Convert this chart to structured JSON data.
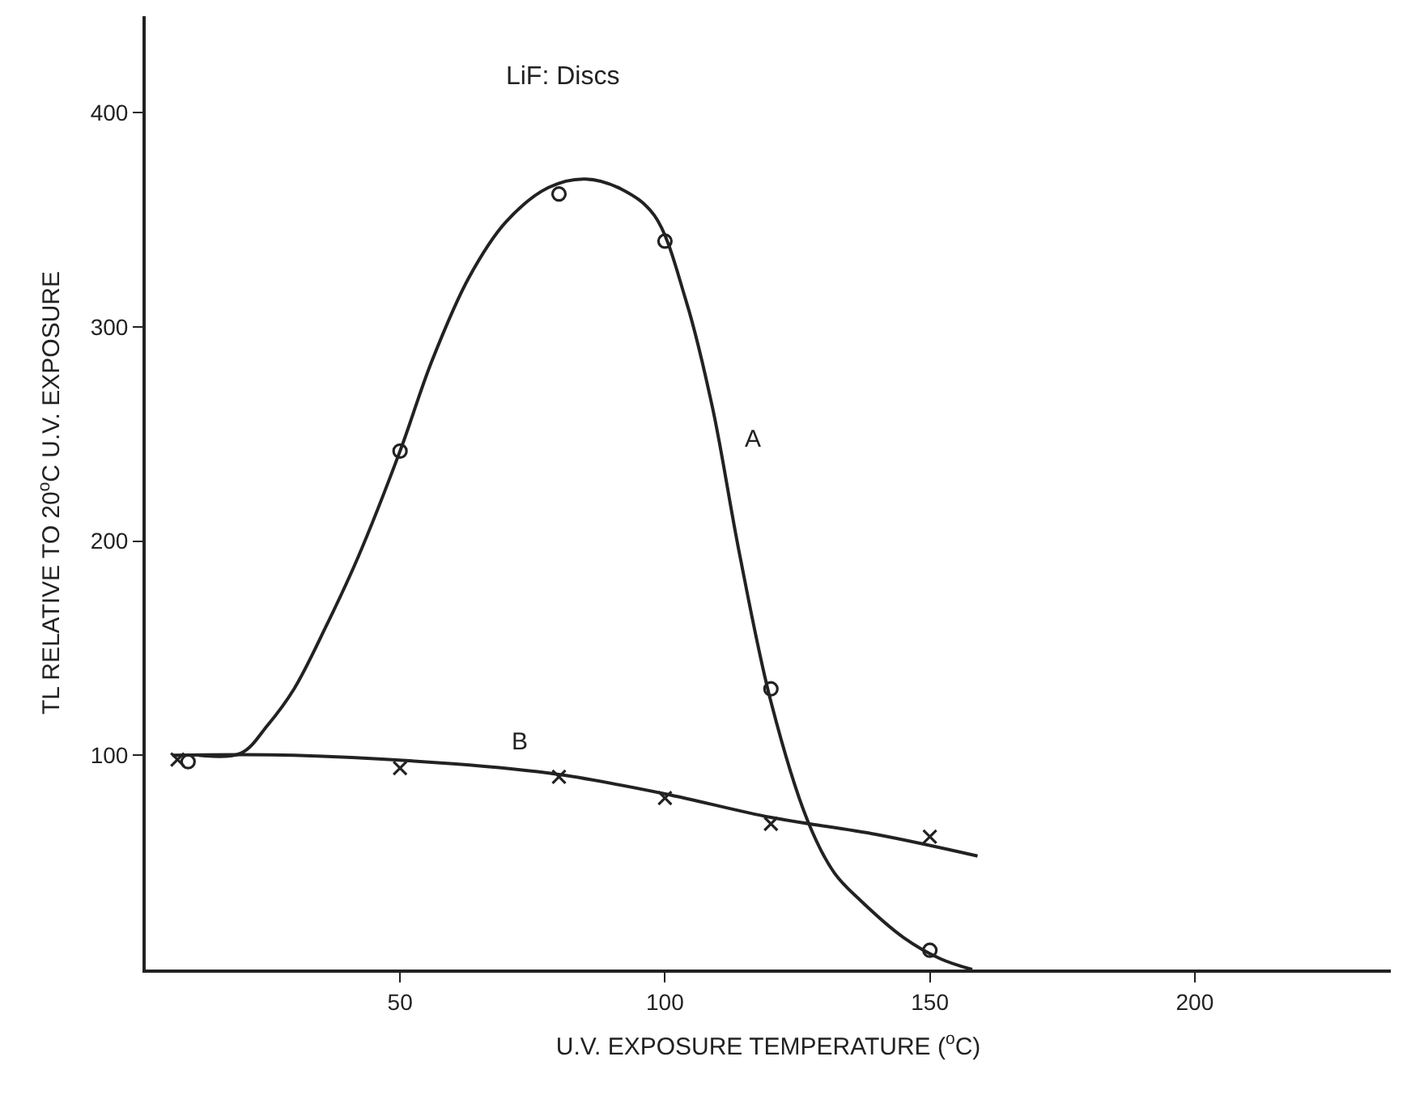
{
  "chart_data": {
    "type": "scatter",
    "title": "LiF: Discs",
    "xlabel": "U.V. EXPOSURE TEMPERATURE ($^{o}$C)",
    "ylabel": "TL RELATIVE TO 20$^{o}$C U.V. EXPOSURE",
    "xlim": [
      2,
      237
    ],
    "ylim": [
      0,
      445
    ],
    "xticks": [
      50,
      100,
      150,
      200
    ],
    "yticks": [
      100,
      200,
      300,
      400
    ],
    "series": [
      {
        "marker": "circle",
        "color": "#222222",
        "x": [
          10,
          50,
          80,
          100,
          120,
          150
        ],
        "values": [
          97,
          242,
          362,
          340,
          131,
          9
        ]
      },
      {
        "marker": "cross",
        "color": "#222222",
        "x": [
          8,
          50,
          80,
          100,
          120,
          150
        ],
        "values": [
          98,
          94,
          90,
          80,
          68,
          62
        ]
      },
      {
        "type": "line",
        "marker": "none",
        "line_style": "solid",
        "color": "#222222",
        "x": [
          12,
          20,
          25,
          30,
          36,
          42,
          50,
          56,
          63,
          70,
          78,
          85,
          92,
          98,
          104,
          109,
          114,
          120,
          127,
          132,
          137,
          145,
          152,
          158
        ],
        "values": [
          100,
          101,
          114,
          131,
          160,
          192,
          242,
          284,
          323,
          349,
          365,
          369,
          364,
          352,
          312,
          262,
          195,
          125,
          69,
          45,
          32,
          15,
          5,
          0
        ]
      },
      {
        "type": "line",
        "marker": "none",
        "line_style": "solid",
        "color": "#222222",
        "x": [
          7,
          30,
          60,
          80,
          100,
          120,
          140,
          159
        ],
        "values": [
          100,
          100,
          96,
          91,
          82,
          71,
          63,
          53
        ]
      }
    ],
    "annotations": [
      {
        "text": "A",
        "x": 112,
        "y": 235
      },
      {
        "text": "B",
        "x": 68,
        "y": 94
      }
    ]
  }
}
